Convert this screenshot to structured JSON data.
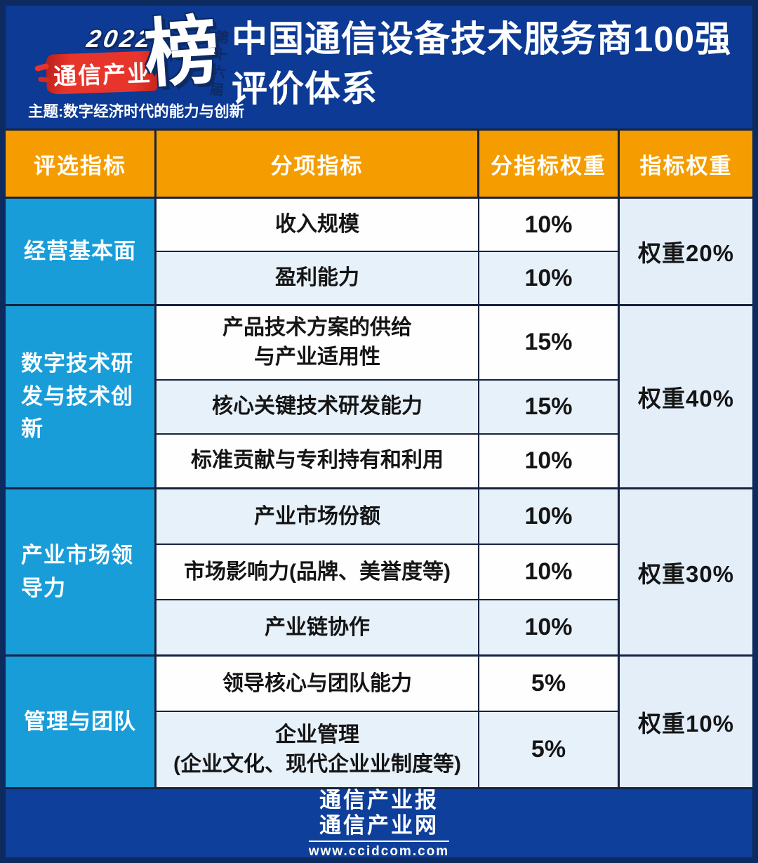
{
  "header": {
    "badge": {
      "year": "2022",
      "brand": "通信产业",
      "rank_char": "榜",
      "edition": "第十六届",
      "theme": "主题:数字经济时代的能力与创新"
    },
    "title_line1": "中国通信设备技术服务商100强",
    "title_line2": "评价体系"
  },
  "table": {
    "columns": [
      "评选指标",
      "分项指标",
      "分指标权重",
      "指标权重"
    ],
    "sections": [
      {
        "category": "经营基本面",
        "weight": "权重20%",
        "rows": [
          {
            "indicator": "收入规模",
            "weight": "10%"
          },
          {
            "indicator": "盈利能力",
            "weight": "10%"
          }
        ]
      },
      {
        "category": "数字技术研发与技术创新",
        "weight": "权重40%",
        "rows": [
          {
            "indicator": "产品技术方案的供给\n与产业适用性",
            "weight": "15%"
          },
          {
            "indicator": "核心关键技术研发能力",
            "weight": "15%"
          },
          {
            "indicator": "标准贡献与专利持有和利用",
            "weight": "10%"
          }
        ]
      },
      {
        "category": "产业市场领导力",
        "weight": "权重30%",
        "rows": [
          {
            "indicator": "产业市场份额",
            "weight": "10%"
          },
          {
            "indicator": "市场影响力(品牌、美誉度等)",
            "weight": "10%"
          },
          {
            "indicator": "产业链协作",
            "weight": "10%"
          }
        ]
      },
      {
        "category": "管理与团队",
        "weight": "权重10%",
        "rows": [
          {
            "indicator": "领导核心与团队能力",
            "weight": "5%"
          },
          {
            "indicator": "企业管理\n(企业文化、现代企业业制度等)",
            "weight": "5%"
          }
        ]
      }
    ]
  },
  "footer": {
    "brand_line1": "通信产业报",
    "brand_line2": "通信产业网",
    "url": "www.ccidcom.com"
  },
  "colors": {
    "background_blue": "#0c3a94",
    "frame_navy": "#0d2b5e",
    "header_orange": "#f49c00",
    "category_cyan": "#199dd9",
    "row_white": "#fefefe",
    "row_light_blue": "#e7f1fa",
    "weight_column": "#e3eef9",
    "badge_red": "#e8352c",
    "grid_line": "#16233f"
  }
}
